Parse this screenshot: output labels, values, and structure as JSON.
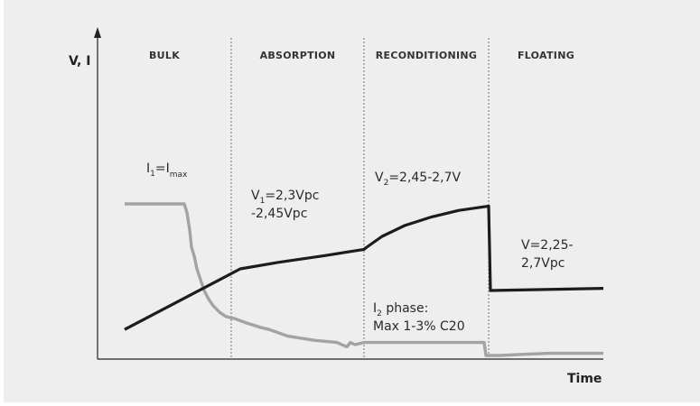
{
  "chart_data": {
    "type": "line",
    "title": "",
    "ylabel": "V, I",
    "xlabel": "Time",
    "xlim": [
      0,
      560
    ],
    "ylim": [
      0,
      100
    ],
    "grid": false,
    "phases": [
      {
        "name": "BULK",
        "start": 0,
        "end": 148
      },
      {
        "name": "ABSORPTION",
        "start": 148,
        "end": 295
      },
      {
        "name": "RECONDITIONING",
        "start": 295,
        "end": 433
      },
      {
        "name": "FLOATING",
        "start": 433,
        "end": 560
      }
    ],
    "series": [
      {
        "color": "#1c1c1c",
        "x": [
          30,
          158,
          200,
          250,
          295,
          298,
          315,
          340,
          370,
          400,
          433,
          433,
          435,
          560
        ],
        "y": [
          12,
          40,
          43,
          46,
          49,
          50,
          55,
          60,
          64,
          67,
          69,
          69,
          30,
          31
        ]
      },
      {
        "color": "#a3a3a3",
        "x": [
          30,
          96,
          99,
          102,
          104,
          107,
          110,
          114,
          118,
          123,
          128,
          135,
          142,
          152,
          165,
          180,
          190,
          210,
          240,
          265,
          276,
          280,
          285,
          295,
          330,
          360,
          380,
          410,
          428,
          430,
          445,
          470,
          500,
          560
        ],
        "y": [
          70,
          70,
          66,
          58,
          50,
          46,
          40,
          35,
          30,
          26,
          23,
          20,
          18,
          17,
          15,
          13,
          12,
          9,
          7,
          6,
          4,
          6,
          5,
          6,
          6,
          6,
          6,
          6,
          6,
          0,
          0,
          0.5,
          1,
          1
        ]
      }
    ],
    "annotations": [
      {
        "text": "I",
        "sub": "1",
        "text2": "=I",
        "sub2": "max"
      },
      {
        "text": "V",
        "sub": "1",
        "text2": "=2,3Vpc",
        "line2": "-2,45Vpc"
      },
      {
        "text": "V",
        "sub": "2",
        "text2": "=2,45-2,7V"
      },
      {
        "text": "V=2,25-",
        "line2": "2,7Vpc"
      },
      {
        "text": "I",
        "sub": "2",
        "text2": " phase:",
        "line2": "Max 1-3% C20"
      }
    ]
  }
}
